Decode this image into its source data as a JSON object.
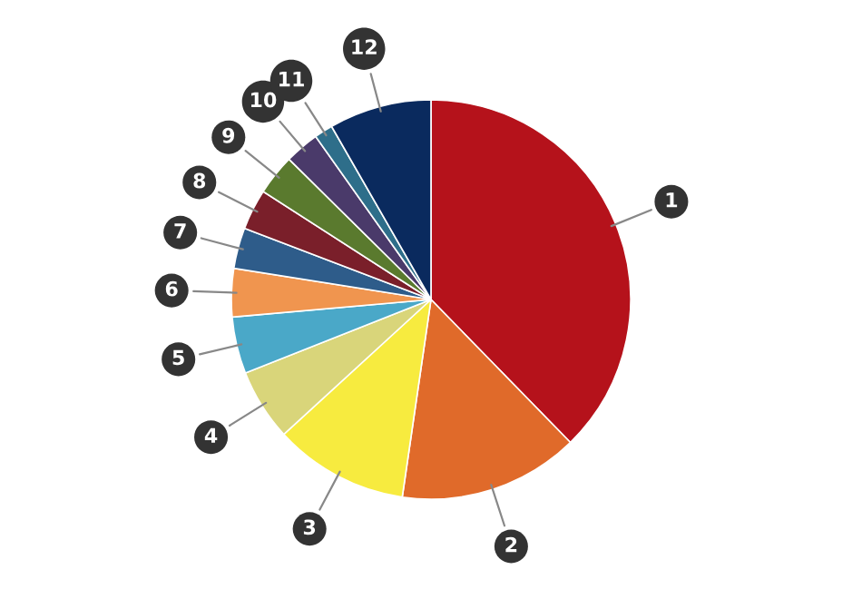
{
  "chart_data": {
    "type": "pie",
    "categories": [
      "1",
      "2",
      "3",
      "4",
      "5",
      "6",
      "7",
      "8",
      "9",
      "10",
      "11",
      "12"
    ],
    "values": [
      37.7,
      14.6,
      10.9,
      5.8,
      4.6,
      3.9,
      3.3,
      3.3,
      3.3,
      2.8,
      1.5,
      8.3
    ],
    "colors": [
      "#b5121b",
      "#e06a2a",
      "#f7eb3f",
      "#d9d57a",
      "#4aa8c8",
      "#f0954f",
      "#2e5c8a",
      "#7a1f2a",
      "#5a7a2e",
      "#4a3a6a",
      "#2e6e8a",
      "#0a2a5e"
    ],
    "legend": false
  }
}
